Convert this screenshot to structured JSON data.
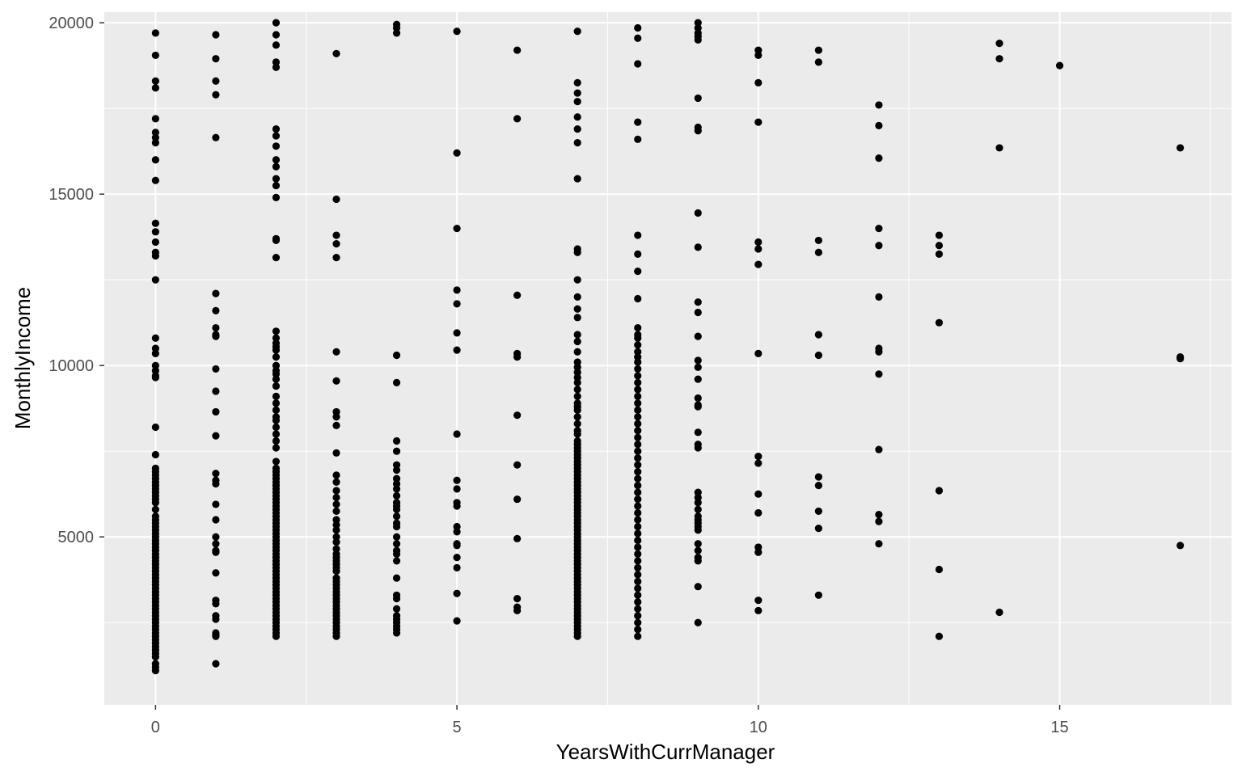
{
  "chart_data": {
    "type": "scatter",
    "title": "",
    "xlabel": "YearsWithCurrManager",
    "ylabel": "MonthlyIncome",
    "xlim": [
      -0.85,
      17.85
    ],
    "ylim": [
      100,
      20310
    ],
    "x_ticks": [
      0,
      5,
      10,
      15
    ],
    "x_tick_labels": [
      "0",
      "5",
      "10",
      "15"
    ],
    "x_minor_ticks": [
      2.5,
      7.5,
      12.5,
      17.5
    ],
    "y_ticks": [
      5000,
      10000,
      15000,
      20000
    ],
    "y_tick_labels": [
      "5000",
      "10000",
      "15000",
      "20000"
    ],
    "y_minor_ticks": [
      2500,
      7500,
      12500,
      17500
    ],
    "grid": true,
    "legend": "none",
    "colors": {
      "panel_bg": "#ebebeb",
      "grid": "#ffffff",
      "point": "#000000",
      "tick_text": "#4d4d4d"
    },
    "columns": [
      {
        "x": 0,
        "y": [
          19700,
          19050,
          18300,
          18100,
          17200,
          16800,
          16650,
          16500,
          16000,
          15400,
          14150,
          13900,
          13600,
          13300,
          13200,
          12500,
          10800,
          10500,
          10350,
          10000,
          9850,
          9700,
          9650,
          8200,
          7400,
          7000,
          6900,
          6800,
          6700,
          6600,
          6500,
          6400,
          6300,
          6200,
          6100,
          6000,
          5800,
          5600,
          5500,
          5400,
          5300,
          5200,
          5100,
          5000,
          4900,
          4800,
          4700,
          4600,
          4500,
          4400,
          4300,
          4200,
          4100,
          4000,
          3900,
          3800,
          3700,
          3600,
          3500,
          3400,
          3300,
          3200,
          3100,
          3000,
          2900,
          2800,
          2700,
          2600,
          2500,
          2400,
          2300,
          2200,
          2100,
          2000,
          1900,
          1800,
          1700,
          1600,
          1500,
          1300,
          1200,
          1100
        ]
      },
      {
        "x": 1,
        "y": [
          19650,
          18950,
          18300,
          17900,
          16650,
          12100,
          11600,
          11100,
          10900,
          10850,
          9900,
          9250,
          8650,
          7950,
          6850,
          6650,
          6550,
          5950,
          5500,
          5000,
          4800,
          4600,
          4550,
          3950,
          3150,
          3050,
          2700,
          2600,
          2200,
          2150,
          2100,
          1300
        ]
      },
      {
        "x": 2,
        "y": [
          20000,
          19650,
          19350,
          18850,
          18700,
          16900,
          16700,
          16400,
          16000,
          15800,
          15450,
          15250,
          14900,
          13700,
          13650,
          13150,
          11000,
          10800,
          10650,
          10550,
          10450,
          10250,
          10000,
          9850,
          9750,
          9600,
          9400,
          9100,
          8900,
          8700,
          8500,
          8400,
          8200,
          8000,
          7800,
          7600,
          7200,
          7000,
          6900,
          6800,
          6700,
          6600,
          6500,
          6400,
          6300,
          6200,
          6100,
          6000,
          5900,
          5800,
          5700,
          5600,
          5500,
          5400,
          5300,
          5200,
          5100,
          5000,
          4900,
          4800,
          4700,
          4600,
          4500,
          4400,
          4300,
          4200,
          4100,
          4000,
          3900,
          3800,
          3700,
          3600,
          3500,
          3400,
          3300,
          3200,
          3100,
          3000,
          2900,
          2800,
          2700,
          2600,
          2500,
          2400,
          2300,
          2200,
          2100
        ]
      },
      {
        "x": 3,
        "y": [
          19100,
          14850,
          13800,
          13550,
          13150,
          10400,
          9550,
          8650,
          8500,
          8250,
          7450,
          6800,
          6600,
          6350,
          6150,
          5950,
          5750,
          5500,
          5350,
          5200,
          5000,
          4850,
          4650,
          4500,
          4400,
          4300,
          4200,
          4100,
          4000,
          3800,
          3700,
          3600,
          3500,
          3400,
          3300,
          3200,
          3100,
          3000,
          2900,
          2800,
          2700,
          2600,
          2500,
          2400,
          2300,
          2200,
          2100
        ]
      },
      {
        "x": 4,
        "y": [
          19950,
          19850,
          19700,
          10300,
          9500,
          7800,
          7500,
          7100,
          6950,
          6700,
          6550,
          6400,
          6200,
          6000,
          5900,
          5800,
          5600,
          5400,
          5300,
          5000,
          4800,
          4600,
          4500,
          4300,
          3800,
          3300,
          3200,
          2900,
          2700,
          2600,
          2500,
          2400,
          2300,
          2200
        ]
      },
      {
        "x": 5,
        "y": [
          19750,
          16200,
          14000,
          12200,
          11800,
          10950,
          10450,
          8000,
          6650,
          6400,
          6000,
          5900,
          5300,
          5150,
          4800,
          4750,
          4400,
          4100,
          3350,
          2550
        ]
      },
      {
        "x": 6,
        "y": [
          19200,
          17200,
          12050,
          10350,
          10250,
          8550,
          7100,
          6100,
          4950,
          3200,
          2950,
          2850
        ]
      },
      {
        "x": 7,
        "y": [
          19750,
          18250,
          17950,
          17700,
          17250,
          16900,
          16500,
          15450,
          13400,
          13300,
          12500,
          12000,
          11650,
          11400,
          10900,
          10700,
          10400,
          10100,
          9950,
          9800,
          9650,
          9500,
          9300,
          9100,
          8900,
          8800,
          8700,
          8500,
          8300,
          8100,
          8000,
          7800,
          7700,
          7600,
          7500,
          7400,
          7300,
          7200,
          7100,
          7000,
          6900,
          6800,
          6700,
          6600,
          6500,
          6400,
          6300,
          6200,
          6100,
          6000,
          5900,
          5800,
          5700,
          5600,
          5500,
          5400,
          5300,
          5200,
          5100,
          5000,
          4900,
          4800,
          4700,
          4600,
          4500,
          4400,
          4300,
          4200,
          4100,
          4000,
          3900,
          3800,
          3700,
          3600,
          3500,
          3400,
          3300,
          3200,
          3100,
          3000,
          2900,
          2800,
          2700,
          2600,
          2500,
          2400,
          2300,
          2200,
          2100
        ]
      },
      {
        "x": 8,
        "y": [
          19850,
          19550,
          18800,
          17100,
          16600,
          13800,
          13250,
          12750,
          11950,
          11100,
          10900,
          10800,
          10600,
          10400,
          10250,
          10100,
          9900,
          9700,
          9500,
          9300,
          9100,
          8900,
          8700,
          8500,
          8300,
          8100,
          7900,
          7700,
          7500,
          7300,
          7100,
          6900,
          6700,
          6500,
          6300,
          6100,
          5900,
          5700,
          5500,
          5300,
          5100,
          4900,
          4700,
          4500,
          4300,
          4100,
          3900,
          3700,
          3500,
          3300,
          3100,
          2900,
          2700,
          2500,
          2300,
          2100
        ]
      },
      {
        "x": 9,
        "y": [
          20000,
          19850,
          19700,
          19600,
          19500,
          17800,
          16950,
          16850,
          14450,
          13450,
          11850,
          11550,
          10850,
          10150,
          9950,
          9600,
          9050,
          8850,
          8800,
          8050,
          7700,
          7600,
          6300,
          6150,
          6000,
          5800,
          5600,
          5500,
          5400,
          5300,
          5200,
          4800,
          4600,
          4400,
          4300,
          3550,
          2500
        ]
      },
      {
        "x": 10,
        "y": [
          19200,
          19050,
          18250,
          17100,
          13600,
          13400,
          12950,
          10350,
          7350,
          7150,
          6250,
          5700,
          4700,
          4550,
          3150,
          2850
        ]
      },
      {
        "x": 11,
        "y": [
          19200,
          18850,
          13650,
          13300,
          10900,
          10300,
          6750,
          6500,
          5750,
          5250,
          3300
        ]
      },
      {
        "x": 12,
        "y": [
          17600,
          17000,
          16050,
          14000,
          13500,
          12000,
          10500,
          10400,
          9750,
          7550,
          5650,
          5450,
          4800
        ]
      },
      {
        "x": 13,
        "y": [
          13800,
          13500,
          13250,
          11250,
          6350,
          4050,
          2100
        ]
      },
      {
        "x": 14,
        "y": [
          19400,
          18950,
          16350,
          2800
        ]
      },
      {
        "x": 15,
        "y": [
          18750
        ]
      },
      {
        "x": 17,
        "y": [
          16350,
          10250,
          10200,
          4750
        ]
      }
    ]
  }
}
